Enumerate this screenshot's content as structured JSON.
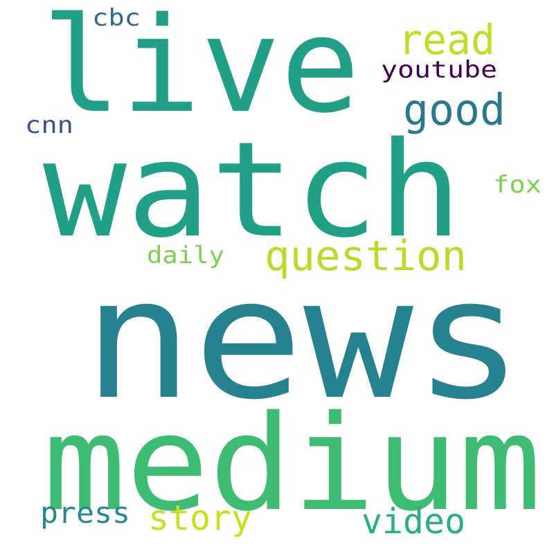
{
  "words": [
    {
      "id": "news",
      "text": "news",
      "color": "#26828e"
    },
    {
      "id": "watch",
      "text": "watch",
      "color": "#21a087"
    },
    {
      "id": "live",
      "text": "live",
      "color": "#21a087"
    },
    {
      "id": "medium",
      "text": "medium",
      "color": "#3fbc73"
    },
    {
      "id": "question",
      "text": "question",
      "color": "#b5dd2b"
    },
    {
      "id": "good",
      "text": "good",
      "color": "#2a788e"
    },
    {
      "id": "read",
      "text": "read",
      "color": "#bddf26"
    },
    {
      "id": "story",
      "text": "story",
      "color": "#c8e020"
    },
    {
      "id": "video",
      "text": "video",
      "color": "#2ab07f"
    },
    {
      "id": "press",
      "text": "press",
      "color": "#23898e"
    },
    {
      "id": "youtube",
      "text": "youtube",
      "color": "#440154"
    },
    {
      "id": "cbc",
      "text": "cbc",
      "color": "#31688e"
    },
    {
      "id": "cnn",
      "text": "cnn",
      "color": "#3b528b"
    },
    {
      "id": "fox",
      "text": "fox",
      "color": "#7ad151"
    },
    {
      "id": "daily",
      "text": "daily",
      "color": "#7ad151"
    }
  ]
}
